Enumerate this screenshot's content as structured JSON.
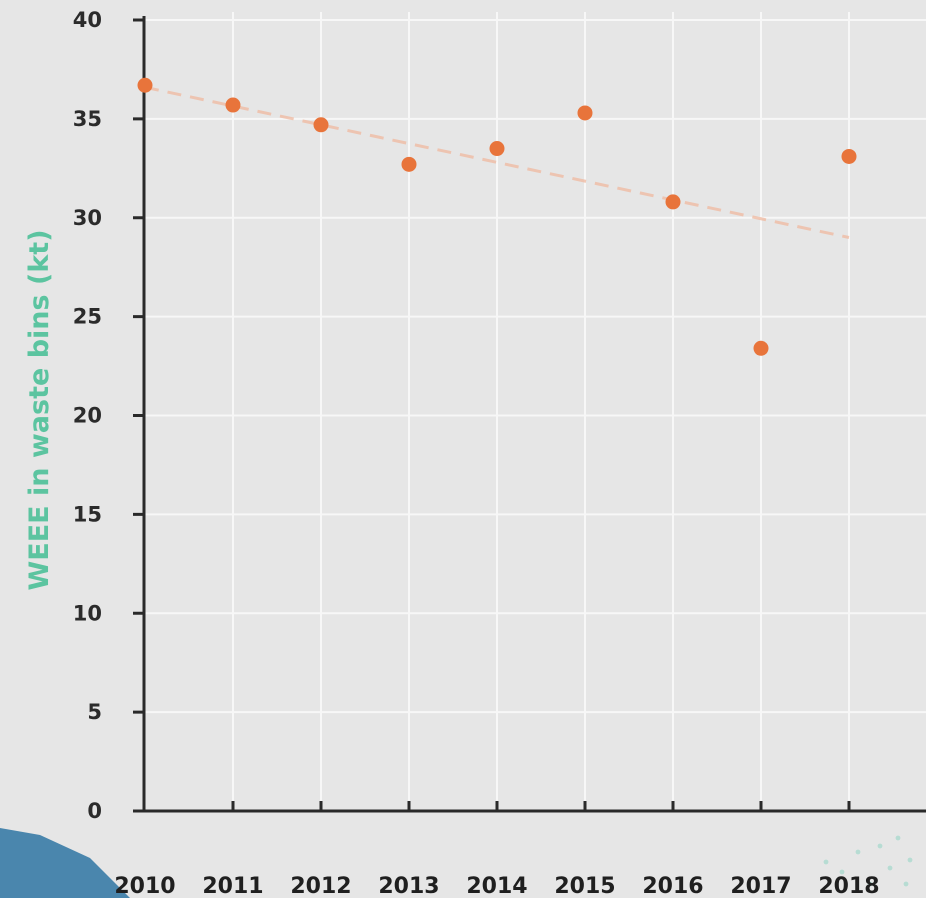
{
  "chart_data": {
    "type": "scatter",
    "title": "",
    "xlabel": "",
    "ylabel": "WEEE in waste bins (kt)",
    "categories": [
      "2010",
      "2011",
      "2012",
      "2013",
      "2014",
      "2015",
      "2016",
      "2017",
      "2018"
    ],
    "series": [
      {
        "values": [
          36.7,
          35.7,
          34.7,
          32.7,
          33.5,
          35.3,
          30.8,
          23.4,
          33.1
        ]
      }
    ],
    "trendline": {
      "style": "dashed",
      "from": {
        "x": "2010",
        "y": 36.6
      },
      "to": {
        "x": "2018",
        "y": 29.0
      }
    },
    "ylim": [
      0,
      40
    ],
    "yticks": [
      0,
      5,
      10,
      15,
      20,
      25,
      30,
      35,
      40
    ],
    "grid": true
  },
  "colors": {
    "background": "#e6e6e6",
    "grid": "#f7f7f7",
    "axis": "#2a2a2a",
    "point": "#e8743b",
    "trend": "#f0b9a0",
    "ylabel": "#5cc4a0",
    "decor_blue": "#4a86ad"
  }
}
